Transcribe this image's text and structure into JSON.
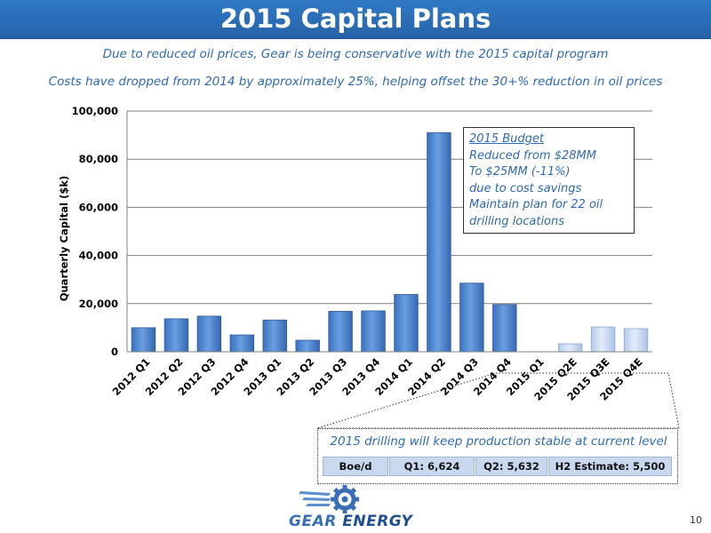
{
  "slide": {
    "title": "2015 Capital Plans",
    "subtitle_1": "Due to reduced oil prices, Gear is being conservative with the 2015 capital program",
    "subtitle_2": "Costs have dropped from 2014 by approximately 25%, helping offset the 30+% reduction in oil prices",
    "page_number": "10"
  },
  "budget_box": {
    "lines": [
      "2015 Budget",
      "Reduced from $28MM",
      "To $25MM (-11%)",
      "due to cost savings",
      "Maintain plan for 22 oil",
      "drilling locations"
    ]
  },
  "production": {
    "caption": "2015 drilling will keep production stable at current level",
    "cells": [
      "Boe/d",
      "Q1: 6,624",
      "Q2: 5,632",
      "H2 Estimate: 5,500"
    ]
  },
  "logo": {
    "gear": "GEAR",
    "energy": "ENERGY"
  },
  "colors": {
    "title_bar": "#2b6db6",
    "bar_actual": "#4a86d4",
    "bar_estimate": "#c6d9f1",
    "text_accent": "#2e6ab3"
  },
  "chart_data": {
    "type": "bar",
    "ylabel": "Quarterly Capital ($k)",
    "xlabel": "",
    "ylim": [
      0,
      100000
    ],
    "yticks": [
      "0",
      "20,000",
      "40,000",
      "60,000",
      "80,000",
      "100,000"
    ],
    "grid": true,
    "categories": [
      "2012 Q1",
      "2012 Q2",
      "2012 Q3",
      "2012 Q4",
      "2013 Q1",
      "2013 Q2",
      "2013 Q3",
      "2013 Q4",
      "2014 Q1",
      "2014 Q2",
      "2014 Q3",
      "2014 Q4",
      "2015 Q1",
      "2015 Q2E",
      "2015 Q3E",
      "2015 Q4E"
    ],
    "values": [
      10000,
      13700,
      14800,
      7000,
      13200,
      4800,
      16800,
      17000,
      23800,
      91000,
      28500,
      19600,
      0,
      3300,
      10300,
      9600
    ],
    "estimate": [
      false,
      false,
      false,
      false,
      false,
      false,
      false,
      false,
      false,
      false,
      false,
      false,
      false,
      true,
      true,
      true
    ]
  }
}
